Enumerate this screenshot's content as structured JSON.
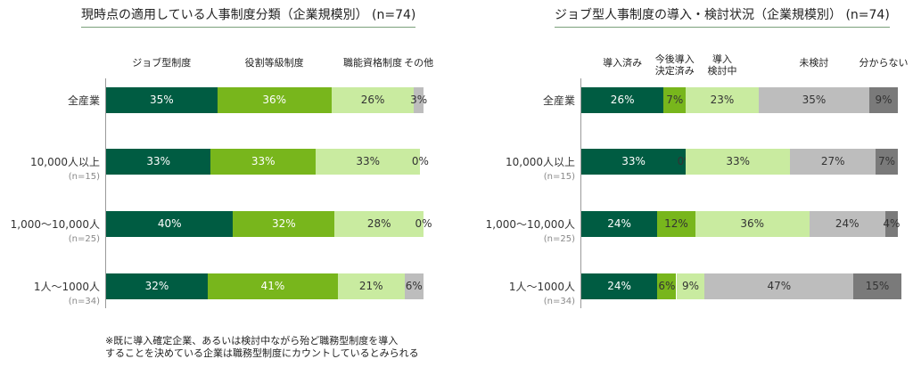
{
  "note": {
    "line1": "※既に導入確定企業、あるいは検討中ながら殆ど職務型制度を導入",
    "line2": "することを決めている企業は職務型制度にカウントしているとみられる"
  },
  "chart_data": [
    {
      "type": "bar",
      "orientation": "horizontal-stacked-100",
      "title": "現時点の適用している人事制度分類（企業規模別） (n=74)",
      "categories": [
        "全産業",
        "10,000人以上",
        "1,000～10,000人",
        "1人～1000人"
      ],
      "category_sublabels": [
        "",
        "(n=15)",
        "(n=25)",
        "(n=34)"
      ],
      "series": [
        {
          "name": "ジョブ型制度",
          "values": [
            35,
            33,
            40,
            32
          ],
          "color": "#005c42",
          "label_color": "#ffffff"
        },
        {
          "name": "役割等級制度",
          "values": [
            36,
            33,
            32,
            41
          ],
          "color": "#78b61c",
          "label_color": "#ffffff"
        },
        {
          "name": "職能資格制度",
          "values": [
            26,
            33,
            28,
            21
          ],
          "color": "#c9eba0",
          "label_color": "#333333"
        },
        {
          "name": "その他",
          "values": [
            3,
            0,
            0,
            6
          ],
          "color": "#bdbdbd",
          "label_color": "#333333"
        }
      ],
      "xlim": [
        0,
        100
      ],
      "legend": "top",
      "grid": false
    },
    {
      "type": "bar",
      "orientation": "horizontal-stacked-100",
      "title": "ジョブ型人事制度の導入・検討状況（企業規模別） (n=74)",
      "categories": [
        "全産業",
        "10,000人以上",
        "1,000～10,000人",
        "1人～1000人"
      ],
      "category_sublabels": [
        "",
        "(n=15)",
        "(n=25)",
        "(n=34)"
      ],
      "series": [
        {
          "name": "導入済み",
          "values": [
            26,
            33,
            24,
            24
          ],
          "color": "#005c42",
          "label_color": "#ffffff"
        },
        {
          "name": "今後導入\n決定済み",
          "values": [
            7,
            0,
            12,
            6
          ],
          "color": "#78b61c",
          "label_color": "#333333"
        },
        {
          "name": "導入\n検討中",
          "values": [
            23,
            33,
            36,
            9
          ],
          "color": "#c9eba0",
          "label_color": "#333333"
        },
        {
          "name": "未検討",
          "values": [
            35,
            27,
            24,
            47
          ],
          "color": "#bdbdbd",
          "label_color": "#333333"
        },
        {
          "name": "分からない",
          "values": [
            9,
            7,
            4,
            15
          ],
          "color": "#7a7a7a",
          "label_color": "#333333"
        }
      ],
      "xlim": [
        0,
        100
      ],
      "legend": "top",
      "grid": false
    }
  ]
}
